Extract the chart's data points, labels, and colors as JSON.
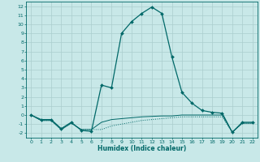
{
  "xlabel": "Humidex (Indice chaleur)",
  "background_color": "#c8e8e8",
  "line_color": "#006868",
  "grid_color": "#aacece",
  "xlim": [
    -0.5,
    22.5
  ],
  "ylim": [
    -2.5,
    12.5
  ],
  "xticks": [
    0,
    1,
    2,
    3,
    4,
    5,
    6,
    7,
    8,
    9,
    10,
    11,
    12,
    13,
    14,
    15,
    16,
    17,
    18,
    19,
    20,
    21,
    22
  ],
  "yticks": [
    -2,
    -1,
    0,
    1,
    2,
    3,
    4,
    5,
    6,
    7,
    8,
    9,
    10,
    11,
    12
  ],
  "series1_x": [
    0,
    1,
    2,
    3,
    4,
    5,
    6,
    7,
    8,
    9,
    10,
    11,
    12,
    13,
    14,
    15,
    16,
    17,
    18,
    19,
    20,
    21,
    22
  ],
  "series1_y": [
    0,
    -0.5,
    -0.5,
    -1.5,
    -0.8,
    -1.7,
    -1.8,
    3.3,
    3.0,
    9.0,
    10.3,
    11.2,
    11.9,
    11.2,
    6.4,
    2.5,
    1.3,
    0.5,
    0.3,
    0.2,
    -1.9,
    -0.8,
    -0.8
  ],
  "series2_x": [
    0,
    1,
    2,
    3,
    4,
    5,
    6,
    7,
    8,
    9,
    10,
    11,
    12,
    13,
    14,
    15,
    16,
    17,
    18,
    19,
    20,
    21,
    22
  ],
  "series2_y": [
    0,
    -0.6,
    -0.6,
    -1.6,
    -0.9,
    -1.6,
    -1.6,
    -1.6,
    -1.2,
    -1.0,
    -0.8,
    -0.6,
    -0.5,
    -0.4,
    -0.3,
    -0.2,
    -0.2,
    -0.2,
    -0.2,
    -0.2,
    -1.9,
    -0.9,
    -0.9
  ],
  "series3_x": [
    0,
    1,
    2,
    3,
    4,
    5,
    6,
    7,
    8,
    9,
    10,
    11,
    12,
    13,
    14,
    15,
    16,
    17,
    18,
    19,
    20,
    21,
    22
  ],
  "series3_y": [
    0,
    -0.6,
    -0.6,
    -1.6,
    -0.9,
    -1.6,
    -1.6,
    -0.8,
    -0.5,
    -0.4,
    -0.3,
    -0.2,
    -0.15,
    -0.1,
    -0.1,
    0.0,
    0.0,
    0.0,
    0.0,
    0.0,
    -1.9,
    -0.9,
    -0.9
  ]
}
